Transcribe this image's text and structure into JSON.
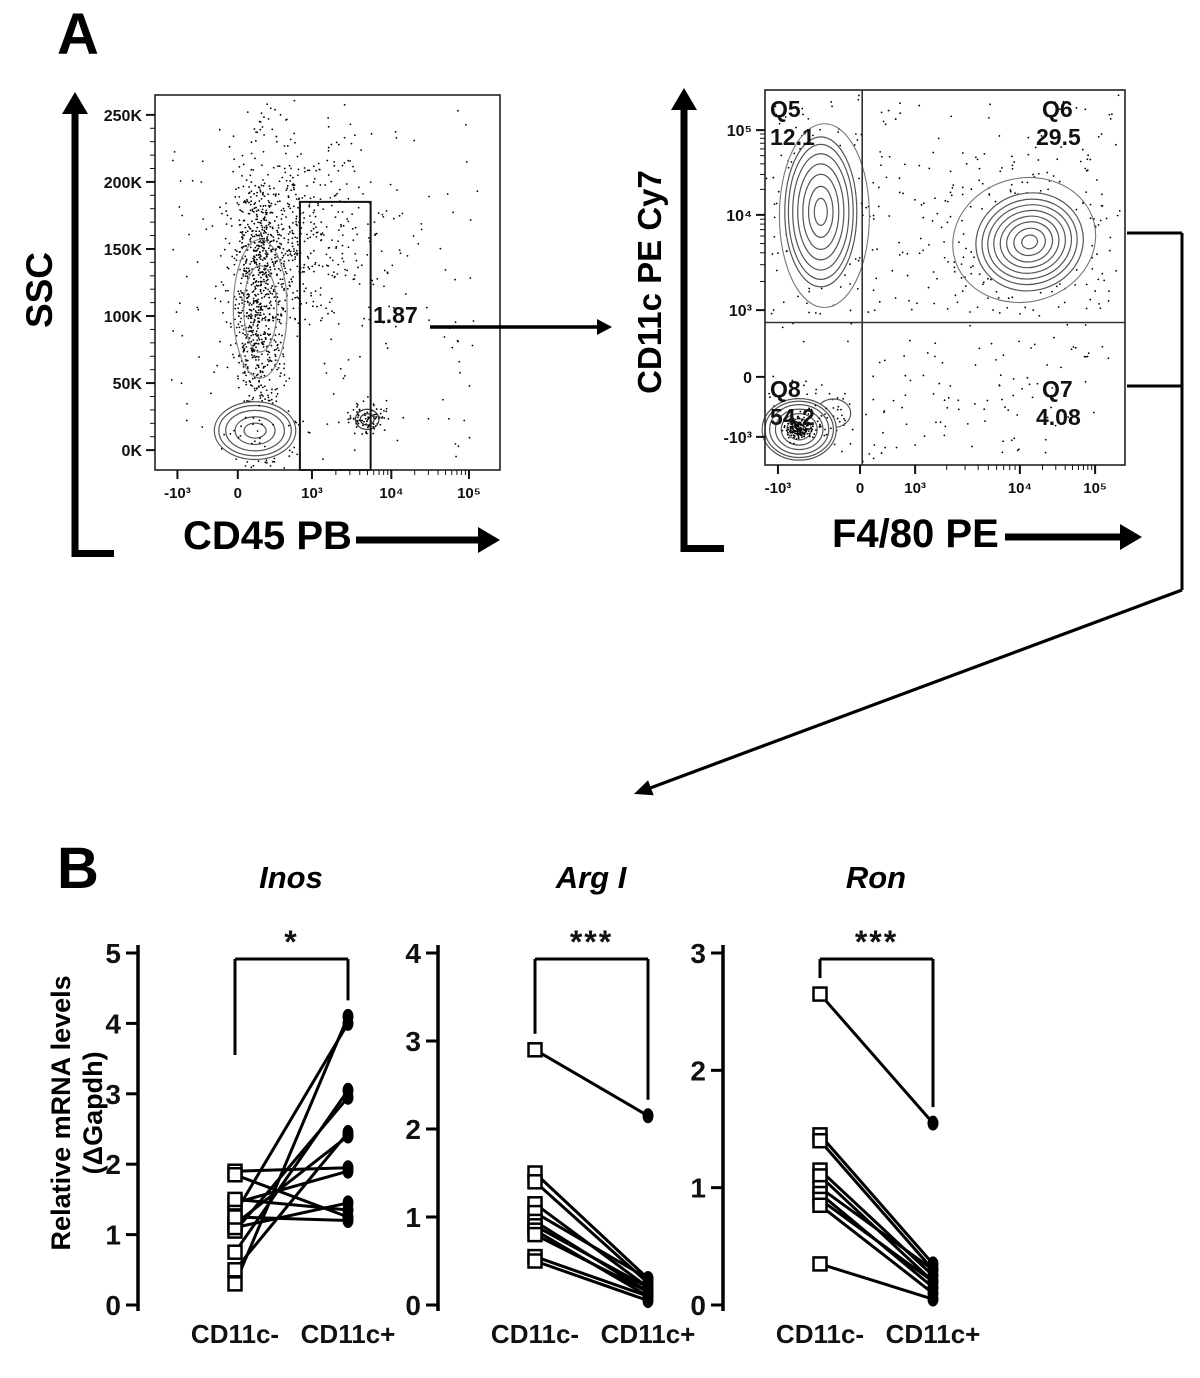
{
  "panel_labels": {
    "a": "A",
    "b": "B"
  },
  "panelB_ylabel": {
    "line1": "Relative mRNA levels",
    "line2": "(ΔGapdh)"
  },
  "chart_data": [
    {
      "type": "contour",
      "panel": "A",
      "xlabel": "CD45 PB",
      "ylabel": "SSC",
      "xticks": [
        "-10³",
        "0",
        "10³",
        "10⁴",
        "10⁵"
      ],
      "yticks": [
        "250K",
        "200K",
        "150K",
        "100K",
        "50K",
        "0K"
      ],
      "gate": {
        "label": "1.87"
      }
    },
    {
      "type": "contour",
      "panel": "A",
      "xlabel": "F4/80 PE",
      "ylabel": "CD11c PE Cy7",
      "xticks": [
        "-10³",
        "0",
        "10³",
        "10⁴",
        "10⁵"
      ],
      "yticks": [
        "10⁵",
        "10⁴",
        "10³",
        "0",
        "-10³"
      ],
      "quadrants": {
        "q5": {
          "name": "Q5",
          "value": "12.1"
        },
        "q6": {
          "name": "Q6",
          "value": "29.5"
        },
        "q7": {
          "name": "Q7",
          "value": "4.08"
        },
        "q8": {
          "name": "Q8",
          "value": "54.2"
        }
      }
    },
    {
      "type": "line",
      "panel": "B",
      "title": "Inos",
      "significance": "*",
      "ylabel": "Relative mRNA levels (ΔGapdh)",
      "categories": [
        "CD11c-",
        "CD11c+"
      ],
      "ylim": [
        0,
        5
      ],
      "yticks": [
        0,
        1,
        2,
        3,
        4,
        5
      ],
      "pairs": [
        [
          0.3,
          4.1
        ],
        [
          1.3,
          4.0
        ],
        [
          0.75,
          3.05
        ],
        [
          1.05,
          2.95
        ],
        [
          0.5,
          2.45
        ],
        [
          1.15,
          2.4
        ],
        [
          1.9,
          1.95
        ],
        [
          1.45,
          1.9
        ],
        [
          1.1,
          1.45
        ],
        [
          1.5,
          1.35
        ],
        [
          1.85,
          1.25
        ],
        [
          1.25,
          1.2
        ]
      ]
    },
    {
      "type": "line",
      "panel": "B",
      "title": "Arg I",
      "significance": "***",
      "ylabel": "Relative mRNA levels (ΔGapdh)",
      "categories": [
        "CD11c-",
        "CD11c+"
      ],
      "ylim": [
        0,
        4
      ],
      "yticks": [
        0,
        1,
        2,
        3,
        4
      ],
      "pairs": [
        [
          2.9,
          2.15
        ],
        [
          1.5,
          0.3
        ],
        [
          1.4,
          0.25
        ],
        [
          1.15,
          0.2
        ],
        [
          1.05,
          0.3
        ],
        [
          0.95,
          0.15
        ],
        [
          0.9,
          0.2
        ],
        [
          0.85,
          0.1
        ],
        [
          0.8,
          0.15
        ],
        [
          0.55,
          0.1
        ],
        [
          0.5,
          0.05
        ]
      ]
    },
    {
      "type": "line",
      "panel": "B",
      "title": "Ron",
      "significance": "***",
      "ylabel": "Relative mRNA levels (ΔGapdh)",
      "categories": [
        "CD11c-",
        "CD11c+"
      ],
      "ylim": [
        0,
        3
      ],
      "yticks": [
        0,
        1,
        2,
        3
      ],
      "pairs": [
        [
          2.65,
          1.55
        ],
        [
          1.45,
          0.35
        ],
        [
          1.4,
          0.3
        ],
        [
          1.15,
          0.25
        ],
        [
          1.1,
          0.2
        ],
        [
          1.0,
          0.3
        ],
        [
          0.95,
          0.15
        ],
        [
          0.9,
          0.2
        ],
        [
          0.85,
          0.1
        ],
        [
          0.35,
          0.05
        ]
      ]
    }
  ]
}
